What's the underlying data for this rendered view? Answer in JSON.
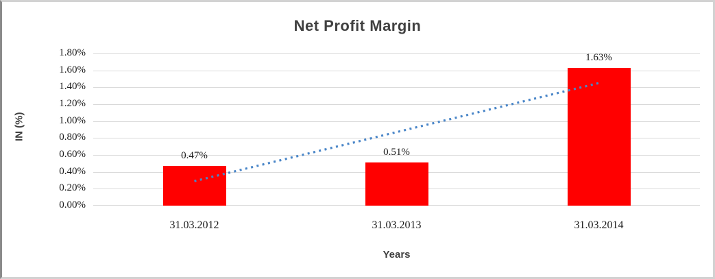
{
  "chart_data": {
    "type": "bar",
    "title": "Net Profit Margin",
    "categories": [
      "31.03.2012",
      "31.03.2013",
      "31.03.2014"
    ],
    "values": [
      0.47,
      0.51,
      1.63
    ],
    "data_labels": [
      "0.47%",
      "0.51%",
      "1.63%"
    ],
    "xlabel": "Years",
    "ylabel": "IN (%)",
    "ylim": [
      0,
      1.8
    ],
    "ytick_step": 0.2,
    "ytick_labels": [
      "0.00%",
      "0.20%",
      "0.40%",
      "0.60%",
      "0.80%",
      "1.00%",
      "1.20%",
      "1.40%",
      "1.60%",
      "1.80%"
    ],
    "grid": true,
    "legend": "none",
    "bar_color": "#ff0000",
    "trendline": {
      "style": "dotted",
      "color": "#4a86c8",
      "start_value": 0.29,
      "end_value": 1.45
    }
  },
  "colors": {
    "title_text": "#404040",
    "grid": "#d9d9d9",
    "tick_text": "#1a1a1a",
    "background": "#ffffff"
  }
}
